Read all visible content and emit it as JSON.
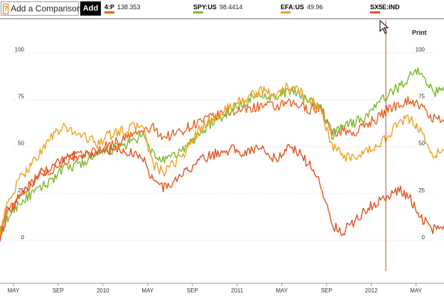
{
  "toolbar": {
    "compare_icon": "?",
    "compare_label": "Add a Comparison",
    "add_label": "Add",
    "print_label": "Print"
  },
  "legend": [
    {
      "symbol": "4:P",
      "value": "138.353",
      "color": "#e8601c"
    },
    {
      "symbol": "SPY:US",
      "value": "98.4414",
      "color": "#7ab82a"
    },
    {
      "symbol": "EFA:US",
      "value": "49.96",
      "color": "#f0a020"
    },
    {
      "symbol": "SX5E:IND",
      "value": "",
      "color": "#e05020"
    }
  ],
  "chart_data": {
    "type": "line",
    "y_ticks": [
      "0",
      "25",
      "50",
      "75",
      "100"
    ],
    "ylim": [
      -22,
      118
    ],
    "x_ticks": [
      "MAY",
      "SEP",
      "2010",
      "MAY",
      "SEP",
      "2011",
      "MAY",
      "SEP",
      "2012",
      "MAY"
    ],
    "x_tick_positions": [
      5,
      9,
      13,
      17,
      21,
      25,
      29,
      33,
      37,
      41
    ],
    "xlim": [
      3.8,
      43.5
    ],
    "x_unit": "months since 2009-01",
    "crosshair_x": 38.3,
    "series": [
      {
        "name": "4:P",
        "color": "#e8601c",
        "x": [
          3.8,
          4.5,
          5.5,
          6.5,
          7.5,
          8.5,
          9.5,
          10.5,
          11.5,
          12.5,
          13.5,
          14.5,
          15.5,
          16.5,
          17.5,
          18.5,
          19.5,
          20.5,
          21.5,
          22.5,
          23.5,
          24.5,
          25.5,
          26.5,
          27.5,
          28.5,
          29.5,
          30.5,
          31.5,
          32.5,
          33.5,
          34.5,
          35.5,
          36.5,
          37.5,
          38.5,
          39.5,
          40.5,
          41.5,
          42.5,
          43.5
        ],
        "values": [
          5,
          17,
          24,
          30,
          36,
          38,
          42,
          45,
          46,
          48,
          51,
          53,
          56,
          58,
          60,
          55,
          57,
          60,
          63,
          65,
          67,
          69,
          70,
          71,
          72,
          71,
          73,
          72,
          70,
          71,
          57,
          59,
          57,
          62,
          65,
          70,
          73,
          75,
          71,
          65,
          63
        ]
      },
      {
        "name": "SPY:US",
        "color": "#7ab82a",
        "x": [
          3.8,
          4.5,
          5.5,
          6.5,
          7.5,
          8.5,
          9.5,
          10.5,
          11.5,
          12.5,
          13.5,
          14.5,
          15.5,
          16.5,
          17.5,
          18.5,
          19.5,
          20.5,
          21.5,
          22.5,
          23.5,
          24.5,
          25.5,
          26.5,
          27.5,
          28.5,
          29.5,
          30.5,
          31.5,
          32.5,
          33.5,
          34.5,
          35.5,
          36.5,
          37.5,
          38.5,
          39.5,
          40.5,
          41.5,
          42.5,
          43.5
        ],
        "values": [
          3,
          12,
          20,
          24,
          28,
          33,
          38,
          40,
          42,
          45,
          48,
          50,
          52,
          56,
          46,
          42,
          46,
          50,
          56,
          62,
          65,
          70,
          73,
          77,
          78,
          76,
          80,
          78,
          75,
          70,
          56,
          62,
          63,
          66,
          72,
          78,
          82,
          88,
          91,
          78,
          82
        ]
      },
      {
        "name": "EFA:US",
        "color": "#f0a020",
        "x": [
          3.8,
          4.5,
          5.5,
          6.5,
          7.5,
          8.5,
          9.5,
          10.5,
          11.5,
          12.5,
          13.5,
          14.5,
          15.5,
          16.5,
          17.5,
          18.5,
          19.5,
          20.5,
          21.5,
          22.5,
          23.5,
          24.5,
          25.5,
          26.5,
          27.5,
          28.5,
          29.5,
          30.5,
          31.5,
          32.5,
          33.5,
          34.5,
          35.5,
          36.5,
          37.5,
          38.5,
          39.5,
          40.5,
          41.5,
          42.5,
          43.5
        ],
        "values": [
          5,
          20,
          32,
          40,
          48,
          56,
          60,
          58,
          55,
          52,
          56,
          58,
          60,
          62,
          40,
          36,
          42,
          48,
          58,
          64,
          67,
          72,
          75,
          78,
          80,
          77,
          82,
          80,
          75,
          70,
          50,
          45,
          43,
          47,
          50,
          56,
          63,
          65,
          58,
          45,
          48
        ]
      },
      {
        "name": "SX5E:IND",
        "color": "#e05020",
        "x": [
          3.8,
          4.5,
          5.5,
          6.5,
          7.5,
          8.5,
          9.5,
          10.5,
          11.5,
          12.5,
          13.5,
          14.5,
          15.5,
          16.5,
          17.5,
          18.5,
          19.5,
          20.5,
          21.5,
          22.5,
          23.5,
          24.5,
          25.5,
          26.5,
          27.5,
          28.5,
          29.5,
          30.5,
          31.5,
          32.5,
          33.5,
          34.5,
          35.5,
          36.5,
          37.5,
          38.5,
          39.5,
          40.5,
          41.5,
          42.5,
          43.5
        ],
        "values": [
          2,
          14,
          22,
          30,
          36,
          40,
          44,
          45,
          46,
          47,
          48,
          48,
          47,
          45,
          32,
          28,
          32,
          37,
          42,
          45,
          47,
          49,
          47,
          49,
          48,
          43,
          50,
          47,
          40,
          30,
          8,
          5,
          10,
          17,
          20,
          24,
          27,
          22,
          12,
          6,
          8
        ]
      }
    ]
  }
}
